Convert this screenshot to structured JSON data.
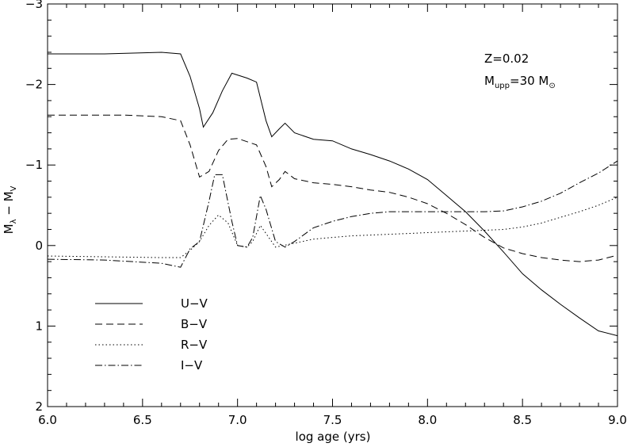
{
  "chart_data": {
    "type": "line",
    "title": "",
    "xlabel": "log age (yrs)",
    "ylabel": {
      "main": "M",
      "sub1": "λ",
      "sep": " − M",
      "sub2": "V"
    },
    "xlim": [
      6.0,
      9.0
    ],
    "ylim": [
      2.0,
      -3.0
    ],
    "y_inverted": true,
    "grid": false,
    "legend_position": "lower-left",
    "x_ticks": [
      {
        "value": 6.0,
        "label": "6.0"
      },
      {
        "value": 6.5,
        "label": "6.5"
      },
      {
        "value": 7.0,
        "label": "7.0"
      },
      {
        "value": 7.5,
        "label": "7.5"
      },
      {
        "value": 8.0,
        "label": "8.0"
      },
      {
        "value": 8.5,
        "label": "8.5"
      },
      {
        "value": 9.0,
        "label": "9.0"
      }
    ],
    "y_ticks": [
      {
        "value": -3,
        "label": "−3"
      },
      {
        "value": -2,
        "label": "−2"
      },
      {
        "value": -1,
        "label": "−1"
      },
      {
        "value": 0,
        "label": "0"
      },
      {
        "value": 1,
        "label": "1"
      },
      {
        "value": 2,
        "label": "2"
      }
    ],
    "annotations": {
      "z_label": "Z=0.02",
      "mupp_main": "M",
      "mupp_sub": "upp",
      "mupp_value": "=30 M",
      "mupp_sun": "⊙"
    },
    "series": [
      {
        "name": "U−V",
        "dash": "solid",
        "x": [
          6.0,
          6.3,
          6.6,
          6.7,
          6.75,
          6.8,
          6.82,
          6.87,
          6.92,
          6.97,
          7.05,
          7.1,
          7.15,
          7.18,
          7.22,
          7.25,
          7.3,
          7.4,
          7.5,
          7.6,
          7.7,
          7.8,
          7.9,
          8.0,
          8.1,
          8.2,
          8.3,
          8.4,
          8.5,
          8.6,
          8.7,
          8.8,
          8.9,
          9.0
        ],
        "y": [
          -2.38,
          -2.38,
          -2.4,
          -2.38,
          -2.1,
          -1.7,
          -1.47,
          -1.65,
          -1.92,
          -2.14,
          -2.08,
          -2.03,
          -1.55,
          -1.35,
          -1.45,
          -1.52,
          -1.4,
          -1.32,
          -1.3,
          -1.2,
          -1.13,
          -1.05,
          -0.95,
          -0.82,
          -0.62,
          -0.42,
          -0.18,
          0.08,
          0.35,
          0.55,
          0.73,
          0.9,
          1.06,
          1.12
        ]
      },
      {
        "name": "B−V",
        "dash": "dashed",
        "x": [
          6.0,
          6.2,
          6.4,
          6.6,
          6.7,
          6.75,
          6.8,
          6.85,
          6.9,
          6.95,
          7.0,
          7.1,
          7.15,
          7.18,
          7.22,
          7.25,
          7.3,
          7.4,
          7.5,
          7.6,
          7.7,
          7.8,
          7.9,
          8.0,
          8.1,
          8.2,
          8.3,
          8.4,
          8.5,
          8.6,
          8.7,
          8.8,
          8.9,
          9.0
        ],
        "y": [
          -1.62,
          -1.62,
          -1.62,
          -1.6,
          -1.55,
          -1.25,
          -0.85,
          -0.92,
          -1.18,
          -1.32,
          -1.33,
          -1.25,
          -0.98,
          -0.73,
          -0.82,
          -0.92,
          -0.83,
          -0.78,
          -0.76,
          -0.73,
          -0.69,
          -0.66,
          -0.6,
          -0.52,
          -0.4,
          -0.26,
          -0.1,
          0.03,
          0.1,
          0.15,
          0.18,
          0.2,
          0.18,
          0.12
        ]
      },
      {
        "name": "R−V",
        "dash": "dotted",
        "x": [
          6.0,
          6.3,
          6.6,
          6.7,
          6.75,
          6.8,
          6.85,
          6.9,
          6.95,
          7.0,
          7.05,
          7.08,
          7.12,
          7.15,
          7.2,
          7.3,
          7.4,
          7.5,
          7.6,
          7.7,
          7.8,
          7.9,
          8.0,
          8.1,
          8.2,
          8.3,
          8.4,
          8.5,
          8.6,
          8.7,
          8.8,
          8.9,
          9.0
        ],
        "y": [
          0.13,
          0.14,
          0.15,
          0.15,
          0.06,
          -0.05,
          -0.25,
          -0.38,
          -0.28,
          0.0,
          0.02,
          -0.05,
          -0.25,
          -0.15,
          0.02,
          -0.03,
          -0.08,
          -0.1,
          -0.12,
          -0.13,
          -0.14,
          -0.15,
          -0.16,
          -0.17,
          -0.18,
          -0.19,
          -0.2,
          -0.23,
          -0.28,
          -0.35,
          -0.42,
          -0.5,
          -0.6
        ]
      },
      {
        "name": "I−V",
        "dash": "dashdot",
        "x": [
          6.0,
          6.3,
          6.6,
          6.7,
          6.75,
          6.8,
          6.85,
          6.88,
          6.92,
          6.97,
          7.0,
          7.05,
          7.08,
          7.12,
          7.15,
          7.2,
          7.25,
          7.3,
          7.4,
          7.5,
          7.6,
          7.7,
          7.8,
          7.9,
          8.0,
          8.1,
          8.2,
          8.3,
          8.4,
          8.5,
          8.6,
          8.7,
          8.8,
          8.9,
          9.0
        ],
        "y": [
          0.17,
          0.18,
          0.22,
          0.27,
          0.04,
          -0.05,
          -0.55,
          -0.88,
          -0.88,
          -0.3,
          0.0,
          0.02,
          -0.1,
          -0.62,
          -0.45,
          -0.05,
          0.02,
          -0.05,
          -0.22,
          -0.3,
          -0.36,
          -0.4,
          -0.42,
          -0.42,
          -0.42,
          -0.42,
          -0.42,
          -0.42,
          -0.43,
          -0.48,
          -0.55,
          -0.65,
          -0.78,
          -0.9,
          -1.05
        ]
      }
    ]
  }
}
